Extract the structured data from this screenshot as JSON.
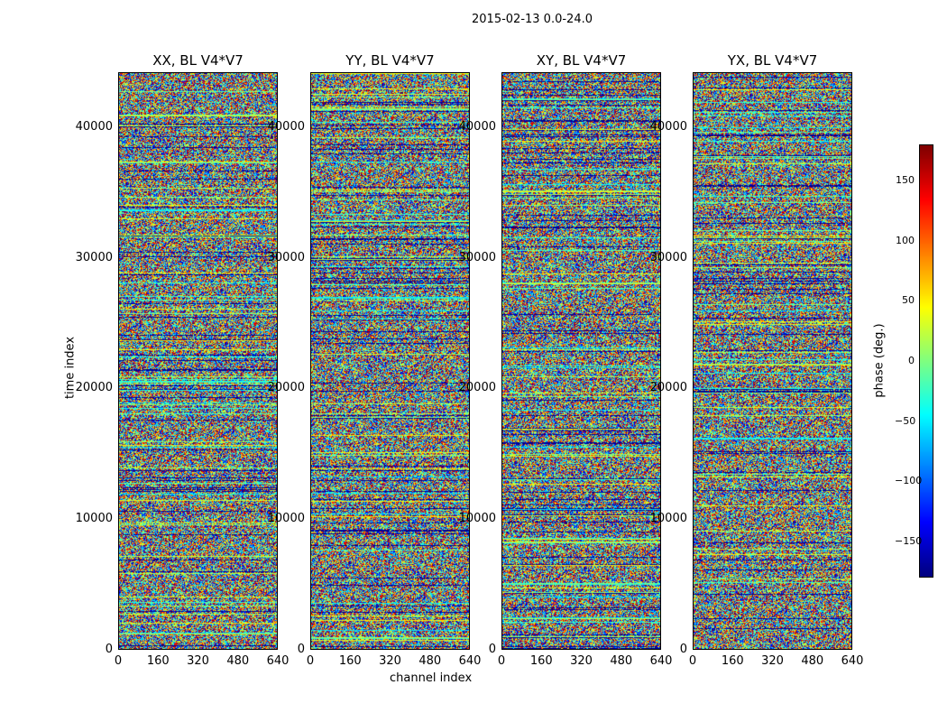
{
  "suptitle": "2015-02-13 0.0-24.0",
  "chart_data": {
    "type": "heatmap",
    "panels": [
      {
        "title": "XX, BL V4*V7"
      },
      {
        "title": "YY, BL V4*V7"
      },
      {
        "title": "XY, BL V4*V7"
      },
      {
        "title": "YX, BL V4*V7"
      }
    ],
    "xlabel": "channel index",
    "ylabel": "time index",
    "xlim": [
      0,
      640
    ],
    "ylim": [
      0,
      44200
    ],
    "xticks": [
      "0",
      "160",
      "320",
      "480",
      "640"
    ],
    "yticks": [
      "0",
      "10000",
      "20000",
      "30000",
      "40000"
    ],
    "xtick_values": [
      0,
      160,
      320,
      480,
      640
    ],
    "ytick_values": [
      0,
      10000,
      20000,
      30000,
      40000
    ],
    "colorbar": {
      "label": "phase (deg.)",
      "range": [
        -180,
        180
      ],
      "ticks": [
        "150",
        "100",
        "50",
        "0",
        "−50",
        "−100",
        "−150"
      ],
      "tick_values": [
        150,
        100,
        50,
        0,
        -50,
        -100,
        -150
      ],
      "colormap": "jet"
    }
  }
}
